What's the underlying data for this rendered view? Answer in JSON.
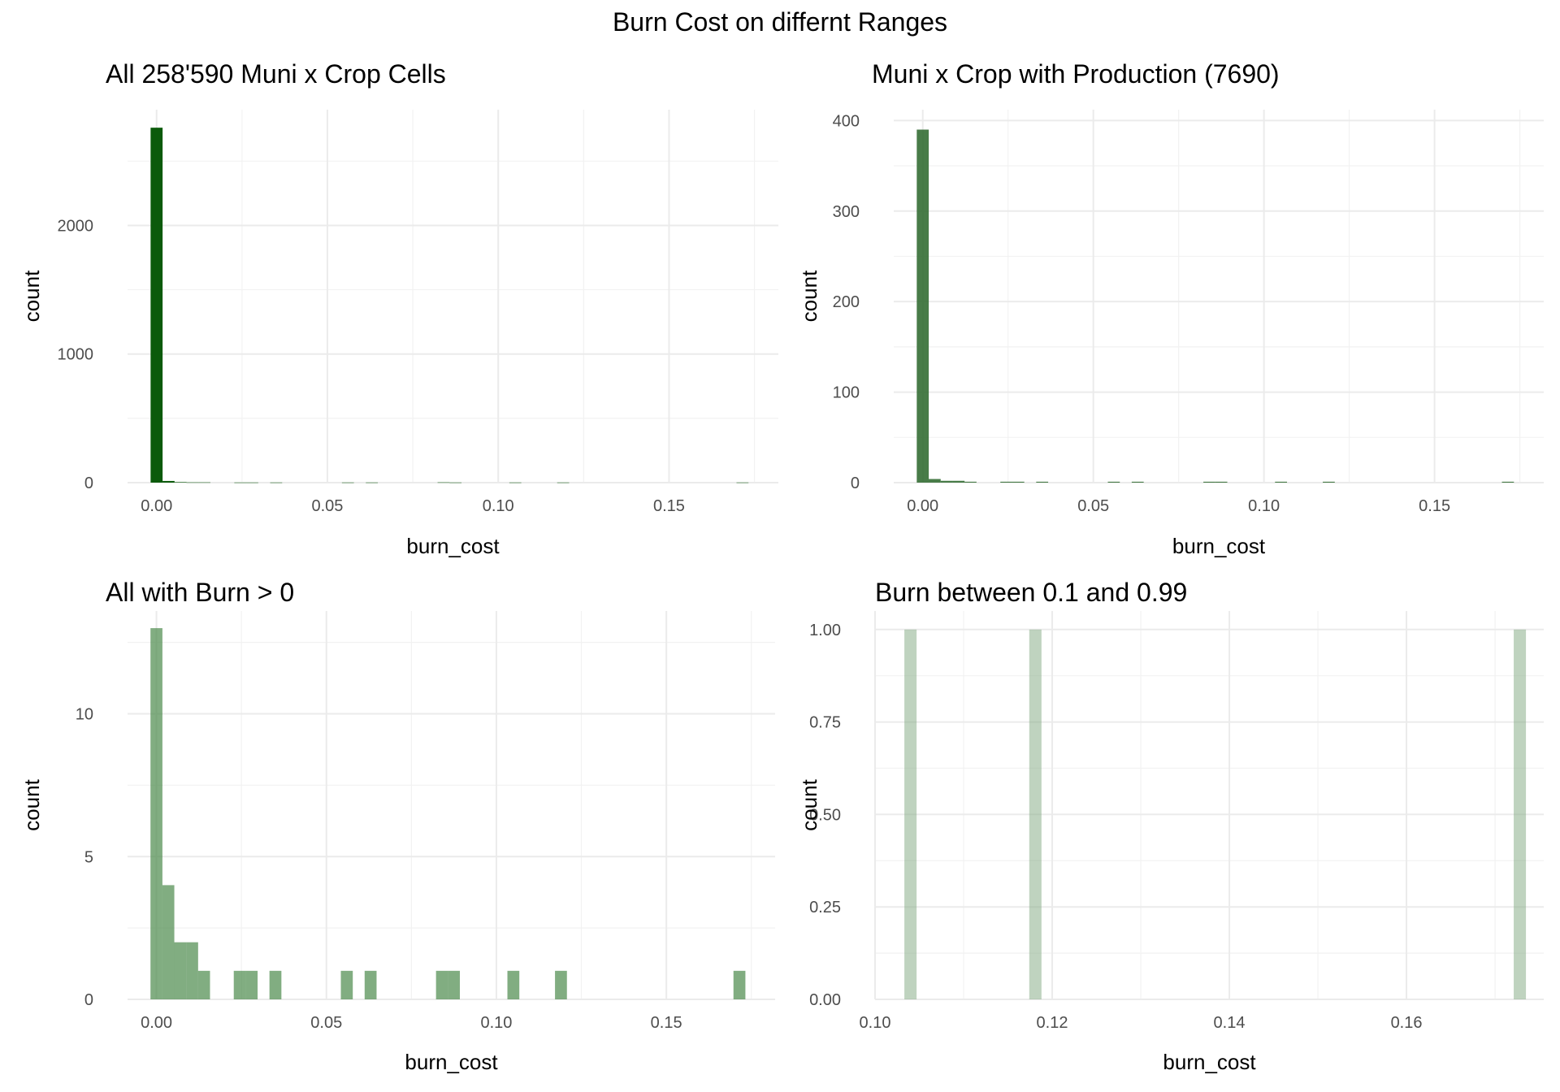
{
  "title": "Burn Cost on differnt Ranges",
  "chart_data": [
    {
      "type": "bar",
      "title": "All 258'590 Muni x Crop Cells",
      "xlabel": "burn_cost",
      "ylabel": "count",
      "color": "#0b5a0b",
      "opacity": 1.0,
      "xlim": [
        -0.0085,
        0.182
      ],
      "ylim": [
        0,
        2900
      ],
      "xticks": [
        0.0,
        0.05,
        0.1,
        0.15
      ],
      "xtick_labels": [
        "0.00",
        "0.05",
        "0.10",
        "0.15"
      ],
      "yticks": [
        0,
        1000,
        2000
      ],
      "ytick_labels": [
        "0",
        "1000",
        "2000"
      ],
      "bin_width": 0.00351,
      "bins_x": [
        0.0,
        0.0035,
        0.007,
        0.0105,
        0.014,
        0.0245,
        0.028,
        0.035,
        0.056,
        0.063,
        0.084,
        0.0875,
        0.105,
        0.119,
        0.1715
      ],
      "values": [
        2760,
        13,
        4,
        2,
        2,
        1,
        1,
        1,
        1,
        1,
        2,
        1,
        1,
        1,
        1
      ],
      "grid": true
    },
    {
      "type": "bar",
      "title": "Muni x Crop with Production (7690)",
      "xlabel": "burn_cost",
      "ylabel": "count",
      "color": "#2f6a2f",
      "opacity": 0.88,
      "xlim": [
        -0.0085,
        0.182
      ],
      "ylim": [
        0,
        412
      ],
      "xticks": [
        0.0,
        0.05,
        0.1,
        0.15
      ],
      "xtick_labels": [
        "0.00",
        "0.05",
        "0.10",
        "0.15"
      ],
      "yticks": [
        0,
        100,
        200,
        300,
        400
      ],
      "ytick_labels": [
        "0",
        "100",
        "200",
        "300",
        "400"
      ],
      "bin_width": 0.00351,
      "bins_x": [
        0.0,
        0.0035,
        0.007,
        0.0105,
        0.014,
        0.0245,
        0.028,
        0.035,
        0.056,
        0.063,
        0.084,
        0.0875,
        0.105,
        0.119,
        0.1715
      ],
      "values": [
        390,
        4,
        2,
        2,
        1,
        1,
        1,
        1,
        1,
        1,
        1,
        1,
        1,
        1,
        1
      ],
      "grid": true
    },
    {
      "type": "bar",
      "title": "All with Burn > 0",
      "xlabel": "burn_cost",
      "ylabel": "count",
      "color": "#4c8a4c",
      "opacity": 0.7,
      "xlim": [
        -0.0085,
        0.182
      ],
      "ylim": [
        0,
        13.6
      ],
      "xticks": [
        0.0,
        0.05,
        0.1,
        0.15
      ],
      "xtick_labels": [
        "0.00",
        "0.05",
        "0.10",
        "0.15"
      ],
      "yticks": [
        0,
        5,
        10
      ],
      "ytick_labels": [
        "0",
        "5",
        "10"
      ],
      "bin_width": 0.00351,
      "bins_x": [
        0.0,
        0.0035,
        0.007,
        0.0105,
        0.014,
        0.0245,
        0.028,
        0.035,
        0.056,
        0.063,
        0.084,
        0.0875,
        0.105,
        0.119,
        0.1715
      ],
      "values": [
        13,
        4,
        2,
        2,
        1,
        1,
        1,
        1,
        1,
        1,
        1,
        1,
        1,
        1,
        1
      ],
      "grid": true
    },
    {
      "type": "bar",
      "title": "Burn between 0.1 and 0.99",
      "xlabel": "burn_cost",
      "ylabel": "count",
      "color": "#7fa77f",
      "opacity": 0.5,
      "xlim": [
        0.1,
        0.1755
      ],
      "ylim": [
        0,
        1.05
      ],
      "xticks": [
        0.1,
        0.12,
        0.14,
        0.16
      ],
      "xtick_labels": [
        "0.10",
        "0.12",
        "0.14",
        "0.16"
      ],
      "yticks": [
        0,
        0.25,
        0.5,
        0.75,
        1.0
      ],
      "ytick_labels": [
        "0.00",
        "0.25",
        "0.50",
        "0.75",
        "1.00"
      ],
      "bin_width": 0.00138,
      "bins_x": [
        0.104,
        0.1181,
        0.1728
      ],
      "values": [
        1,
        1,
        1
      ],
      "grid": true
    }
  ]
}
